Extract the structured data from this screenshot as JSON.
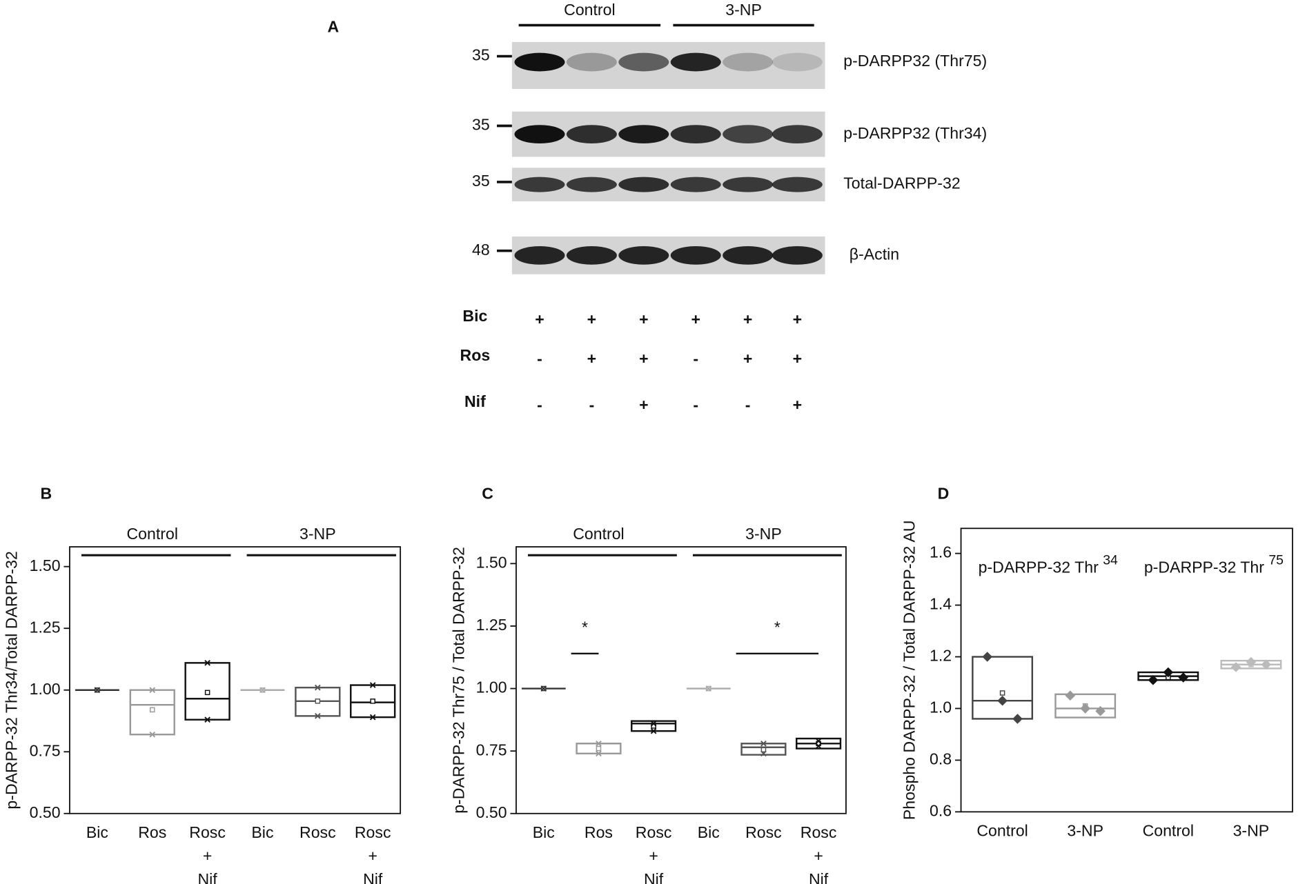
{
  "blot": {
    "label": "A",
    "groups": [
      "Control",
      "3-NP"
    ],
    "bands": [
      {
        "marker": "35",
        "name": "p-DARPP32 (Thr75)"
      },
      {
        "marker": "35",
        "name": "p-DARPP32 (Thr34)"
      },
      {
        "marker": "35",
        "name": "Total-DARPP-32"
      },
      {
        "marker": "48",
        "name": "β-Actin"
      }
    ],
    "treatments": [
      {
        "name": "Bic",
        "signs": [
          "+",
          "+",
          "+",
          "+",
          "+",
          "+"
        ]
      },
      {
        "name": "Ros",
        "signs": [
          "-",
          "+",
          "+",
          "-",
          "+",
          "+"
        ]
      },
      {
        "name": "Nif",
        "signs": [
          "-",
          "-",
          "+",
          "-",
          "-",
          "+"
        ]
      }
    ]
  },
  "chart_data": [
    {
      "type": "box",
      "label": "B",
      "ylabel": "p-DARPP-32 Thr34/Total DARPP-32",
      "groups": [
        "Control",
        "3-NP"
      ],
      "group_lines": true,
      "point_marker": "x",
      "categories": [
        "Bic",
        "Ros",
        "Rosc\n+\nNif",
        "Bic",
        "Rosc",
        "Rosc\n+\nNif"
      ],
      "ylim": [
        0.5,
        1.58
      ],
      "yticks": [
        {
          "value": 0.5,
          "label": "0.50"
        },
        {
          "value": 0.75,
          "label": "0.75"
        },
        {
          "value": 1,
          "label": "1.00"
        },
        {
          "value": 1.25,
          "label": "1.25"
        },
        {
          "value": 1.5,
          "label": "1.50"
        }
      ],
      "boxes": [
        {
          "color": "#333333",
          "q1": 1.0,
          "q3": 1.0,
          "median": 1.0,
          "mean": 1.0,
          "points": [
            1.0
          ]
        },
        {
          "color": "#999999",
          "q1": 0.82,
          "q3": 1.0,
          "median": 0.94,
          "mean": 0.92,
          "points": [
            1.0,
            0.82
          ]
        },
        {
          "color": "#111111",
          "q1": 0.88,
          "q3": 1.11,
          "median": 0.965,
          "mean": 0.99,
          "points": [
            1.11,
            0.88
          ]
        },
        {
          "color": "#aaaaaa",
          "q1": 1.0,
          "q3": 1.0,
          "median": 1.0,
          "mean": 1.0,
          "points": [
            1.0
          ]
        },
        {
          "color": "#555555",
          "q1": 0.895,
          "q3": 1.01,
          "median": 0.955,
          "mean": 0.955,
          "points": [
            1.01,
            0.895
          ]
        },
        {
          "color": "#111111",
          "q1": 0.89,
          "q3": 1.02,
          "median": 0.95,
          "mean": 0.955,
          "points": [
            1.02,
            0.89
          ]
        }
      ]
    },
    {
      "type": "box",
      "label": "C",
      "ylabel": "p-DARPP-32 Thr75 / Total DARPP-32",
      "groups": [
        "Control",
        "3-NP"
      ],
      "group_lines": true,
      "point_marker": "x",
      "categories": [
        "Bic",
        "Ros",
        "Rosc\n+\nNif",
        "Bic",
        "Rosc",
        "Rosc\n+\nNif"
      ],
      "ylim": [
        0.5,
        1.567
      ],
      "yticks": [
        {
          "value": 0.5,
          "label": "0.50"
        },
        {
          "value": 0.75,
          "label": "0.75"
        },
        {
          "value": 1,
          "label": "1.00"
        },
        {
          "value": 1.25,
          "label": "1.25"
        },
        {
          "value": 1.5,
          "label": "1.50"
        }
      ],
      "significance": [
        {
          "label": "*",
          "from": 0,
          "to": 1,
          "y": 1.14
        },
        {
          "label": "*",
          "from": 3,
          "to": 5,
          "y": 1.14
        }
      ],
      "boxes": [
        {
          "color": "#333333",
          "q1": 1.0,
          "q3": 1.0,
          "median": 1.0,
          "mean": 1.0,
          "points": [
            1.0
          ]
        },
        {
          "color": "#999999",
          "q1": 0.74,
          "q3": 0.78,
          "median": 0.78,
          "mean": 0.76,
          "points": [
            0.78,
            0.74
          ]
        },
        {
          "color": "#111111",
          "q1": 0.83,
          "q3": 0.87,
          "median": 0.86,
          "mean": 0.85,
          "points": [
            0.86,
            0.83
          ]
        },
        {
          "color": "#aaaaaa",
          "q1": 1.0,
          "q3": 1.0,
          "median": 1.0,
          "mean": 1.0,
          "points": [
            1.0
          ]
        },
        {
          "color": "#555555",
          "q1": 0.735,
          "q3": 0.78,
          "median": 0.765,
          "mean": 0.755,
          "points": [
            0.78,
            0.74
          ]
        },
        {
          "color": "#111111",
          "q1": 0.76,
          "q3": 0.8,
          "median": 0.78,
          "mean": 0.78,
          "points": [
            0.79,
            0.77
          ]
        }
      ]
    },
    {
      "type": "box",
      "label": "D",
      "ylabel": "Phospho DARPP-32 / Total DARPP-32 AU",
      "groups": [
        {
          "text": "p-DARPP-32 Thr",
          "sup": "34"
        },
        {
          "text": "p-DARPP-32 Thr",
          "sup": "75"
        }
      ],
      "group_lines": false,
      "point_marker": "diamond",
      "categories": [
        "Control",
        "3-NP",
        "Control",
        "3-NP"
      ],
      "ylim": [
        0.6,
        1.697
      ],
      "yticks": [
        0.6,
        0.8,
        {
          "value": 1,
          "label": "1.0"
        },
        1.2,
        1.4,
        1.6
      ],
      "boxes": [
        {
          "color": "#444444",
          "q1": 0.96,
          "q3": 1.2,
          "median": 1.03,
          "mean": 1.06,
          "points": [
            1.2,
            1.03,
            0.96
          ]
        },
        {
          "color": "#999999",
          "q1": 0.965,
          "q3": 1.055,
          "median": 1.0,
          "mean": 1.01,
          "points": [
            1.05,
            1.0,
            0.99
          ]
        },
        {
          "color": "#111111",
          "q1": 1.11,
          "q3": 1.14,
          "median": 1.125,
          "mean": 1.12,
          "points": [
            1.11,
            1.14,
            1.12
          ]
        },
        {
          "color": "#bbbbbb",
          "q1": 1.155,
          "q3": 1.185,
          "median": 1.17,
          "mean": 1.17,
          "points": [
            1.16,
            1.18,
            1.17
          ]
        }
      ]
    }
  ]
}
